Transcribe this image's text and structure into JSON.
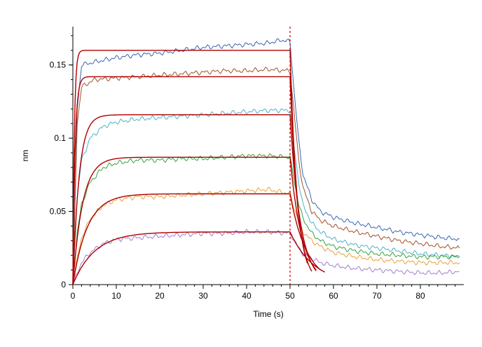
{
  "chart_data": {
    "type": "line",
    "title": "",
    "xlabel": "Time (s)",
    "ylabel": "nm",
    "xlim": [
      0,
      90
    ],
    "ylim": [
      0,
      0.18
    ],
    "x_ticks": [
      0,
      10,
      20,
      30,
      40,
      50,
      60,
      70,
      80
    ],
    "x_tick_labels": [
      "0",
      "10",
      "20",
      "30",
      "40",
      "50",
      "60",
      "70",
      "80"
    ],
    "y_ticks": [
      0,
      0.05,
      0.1,
      0.15
    ],
    "y_tick_labels": [
      "0",
      "0.05",
      "0.1",
      "0.15"
    ],
    "grid": false,
    "legend": "none",
    "annotations": [
      {
        "type": "vertical-dashed-line",
        "x": 50,
        "color": "#cc0000"
      }
    ],
    "fit_color": "#b00000",
    "series": [
      {
        "color": "#3b66b0",
        "points": [
          [
            0,
            0
          ],
          [
            1,
            0.12
          ],
          [
            2,
            0.15
          ],
          [
            5,
            0.152
          ],
          [
            10,
            0.155
          ],
          [
            15,
            0.157
          ],
          [
            20,
            0.158
          ],
          [
            25,
            0.16
          ],
          [
            30,
            0.162
          ],
          [
            35,
            0.163
          ],
          [
            40,
            0.164
          ],
          [
            45,
            0.165
          ],
          [
            48,
            0.167
          ],
          [
            50,
            0.166
          ],
          [
            51,
            0.13
          ],
          [
            52,
            0.098
          ],
          [
            53,
            0.075
          ],
          [
            55,
            0.058
          ],
          [
            57,
            0.05
          ],
          [
            60,
            0.046
          ],
          [
            65,
            0.042
          ],
          [
            70,
            0.039
          ],
          [
            75,
            0.036
          ],
          [
            80,
            0.034
          ],
          [
            85,
            0.032
          ],
          [
            89,
            0.031
          ]
        ]
      },
      {
        "color": "#a0522d",
        "points": [
          [
            0,
            0
          ],
          [
            1,
            0.11
          ],
          [
            2,
            0.135
          ],
          [
            5,
            0.14
          ],
          [
            10,
            0.141
          ],
          [
            15,
            0.142
          ],
          [
            20,
            0.143
          ],
          [
            25,
            0.144
          ],
          [
            30,
            0.145
          ],
          [
            35,
            0.146
          ],
          [
            40,
            0.146
          ],
          [
            45,
            0.147
          ],
          [
            50,
            0.146
          ],
          [
            51,
            0.115
          ],
          [
            52,
            0.085
          ],
          [
            53,
            0.066
          ],
          [
            55,
            0.05
          ],
          [
            57,
            0.044
          ],
          [
            60,
            0.04
          ],
          [
            65,
            0.036
          ],
          [
            70,
            0.033
          ],
          [
            75,
            0.03
          ],
          [
            80,
            0.028
          ],
          [
            85,
            0.026
          ],
          [
            89,
            0.025
          ]
        ]
      },
      {
        "color": "#4fb0c6",
        "points": [
          [
            0,
            0
          ],
          [
            1,
            0.06
          ],
          [
            2,
            0.085
          ],
          [
            4,
            0.1
          ],
          [
            7,
            0.108
          ],
          [
            10,
            0.111
          ],
          [
            15,
            0.113
          ],
          [
            20,
            0.114
          ],
          [
            25,
            0.115
          ],
          [
            30,
            0.116
          ],
          [
            35,
            0.117
          ],
          [
            40,
            0.118
          ],
          [
            45,
            0.119
          ],
          [
            50,
            0.119
          ],
          [
            51,
            0.092
          ],
          [
            52,
            0.07
          ],
          [
            53,
            0.054
          ],
          [
            55,
            0.042
          ],
          [
            57,
            0.036
          ],
          [
            60,
            0.031
          ],
          [
            65,
            0.027
          ],
          [
            70,
            0.025
          ],
          [
            75,
            0.023
          ],
          [
            80,
            0.021
          ],
          [
            85,
            0.02
          ],
          [
            89,
            0.019
          ]
        ]
      },
      {
        "color": "#3aa040",
        "points": [
          [
            0,
            0
          ],
          [
            1,
            0.035
          ],
          [
            2,
            0.055
          ],
          [
            4,
            0.07
          ],
          [
            7,
            0.08
          ],
          [
            10,
            0.083
          ],
          [
            15,
            0.085
          ],
          [
            20,
            0.085
          ],
          [
            25,
            0.086
          ],
          [
            30,
            0.086
          ],
          [
            35,
            0.087
          ],
          [
            40,
            0.088
          ],
          [
            45,
            0.088
          ],
          [
            50,
            0.087
          ],
          [
            51,
            0.07
          ],
          [
            52,
            0.055
          ],
          [
            53,
            0.045
          ],
          [
            55,
            0.035
          ],
          [
            57,
            0.03
          ],
          [
            60,
            0.026
          ],
          [
            65,
            0.023
          ],
          [
            70,
            0.021
          ],
          [
            75,
            0.02
          ],
          [
            80,
            0.019
          ],
          [
            85,
            0.019
          ],
          [
            89,
            0.019
          ]
        ]
      },
      {
        "color": "#e8a040",
        "points": [
          [
            0,
            0
          ],
          [
            1,
            0.018
          ],
          [
            2,
            0.032
          ],
          [
            4,
            0.045
          ],
          [
            7,
            0.054
          ],
          [
            10,
            0.058
          ],
          [
            15,
            0.06
          ],
          [
            20,
            0.06
          ],
          [
            25,
            0.061
          ],
          [
            30,
            0.062
          ],
          [
            35,
            0.063
          ],
          [
            40,
            0.064
          ],
          [
            45,
            0.065
          ],
          [
            50,
            0.062
          ],
          [
            51,
            0.052
          ],
          [
            52,
            0.043
          ],
          [
            53,
            0.036
          ],
          [
            55,
            0.03
          ],
          [
            57,
            0.026
          ],
          [
            60,
            0.022
          ],
          [
            65,
            0.019
          ],
          [
            70,
            0.017
          ],
          [
            75,
            0.016
          ],
          [
            80,
            0.015
          ],
          [
            85,
            0.015
          ],
          [
            89,
            0.015
          ]
        ]
      },
      {
        "color": "#a080d0",
        "points": [
          [
            0,
            0
          ],
          [
            1,
            0.008
          ],
          [
            2,
            0.015
          ],
          [
            4,
            0.022
          ],
          [
            7,
            0.028
          ],
          [
            10,
            0.031
          ],
          [
            15,
            0.032
          ],
          [
            20,
            0.033
          ],
          [
            25,
            0.034
          ],
          [
            30,
            0.035
          ],
          [
            35,
            0.035
          ],
          [
            40,
            0.036
          ],
          [
            45,
            0.036
          ],
          [
            50,
            0.035
          ],
          [
            51,
            0.03
          ],
          [
            52,
            0.025
          ],
          [
            53,
            0.021
          ],
          [
            55,
            0.018
          ],
          [
            57,
            0.015
          ],
          [
            60,
            0.013
          ],
          [
            65,
            0.011
          ],
          [
            70,
            0.01
          ],
          [
            75,
            0.009
          ],
          [
            80,
            0.008
          ],
          [
            85,
            0.008
          ],
          [
            89,
            0.009
          ]
        ]
      }
    ],
    "fits": [
      {
        "plateau": 0.16,
        "k_on": 3.0,
        "dissoc_end_x": 54,
        "k_off": 0.6
      },
      {
        "plateau": 0.142,
        "k_on": 2.0,
        "dissoc_end_x": 55,
        "k_off": 0.55
      },
      {
        "plateau": 0.116,
        "k_on": 0.7,
        "dissoc_end_x": 56,
        "k_off": 0.42
      },
      {
        "plateau": 0.087,
        "k_on": 0.45,
        "dissoc_end_x": 56,
        "k_off": 0.36
      },
      {
        "plateau": 0.062,
        "k_on": 0.3,
        "dissoc_end_x": 57,
        "k_off": 0.26
      },
      {
        "plateau": 0.036,
        "k_on": 0.2,
        "dissoc_end_x": 58,
        "k_off": 0.18
      }
    ]
  }
}
